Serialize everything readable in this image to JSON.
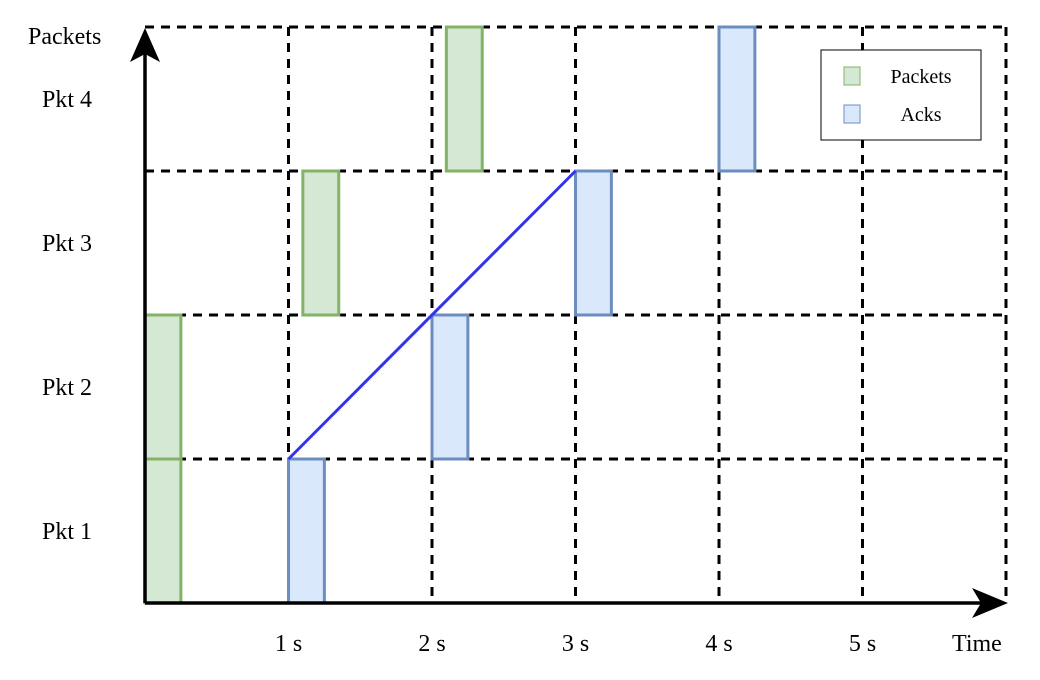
{
  "chart_data": {
    "type": "timing-diagram",
    "y_axis_label": "Packets",
    "x_axis_label": "Time",
    "rows": [
      "Pkt 1",
      "Pkt 2",
      "Pkt 3",
      "Pkt 4"
    ],
    "x_ticks": [
      "1 s",
      "2 s",
      "3 s",
      "4 s",
      "5 s"
    ],
    "x_range": [
      0,
      6
    ],
    "legend": [
      {
        "label": "Packets",
        "fill": "#d5e8d4",
        "stroke": "#82b366"
      },
      {
        "label": "Acks",
        "fill": "#dae8fc",
        "stroke": "#6c8ebf"
      }
    ],
    "legend_position": "top-right",
    "packets": [
      {
        "row": 1,
        "start": 0.0,
        "duration": 0.25
      },
      {
        "row": 2,
        "start": 0.0,
        "duration": 0.25
      },
      {
        "row": 3,
        "start": 1.1,
        "duration": 0.25
      },
      {
        "row": 4,
        "start": 2.1,
        "duration": 0.25
      }
    ],
    "acks": [
      {
        "row": 1,
        "start": 1.0,
        "duration": 0.25
      },
      {
        "row": 2,
        "start": 2.0,
        "duration": 0.25
      },
      {
        "row": 3,
        "start": 3.0,
        "duration": 0.25
      },
      {
        "row": 4,
        "start": 4.0,
        "duration": 0.25
      }
    ],
    "line": {
      "color": "#3333ee",
      "from": [
        1.0,
        1
      ],
      "to": [
        3.0,
        3
      ]
    }
  }
}
